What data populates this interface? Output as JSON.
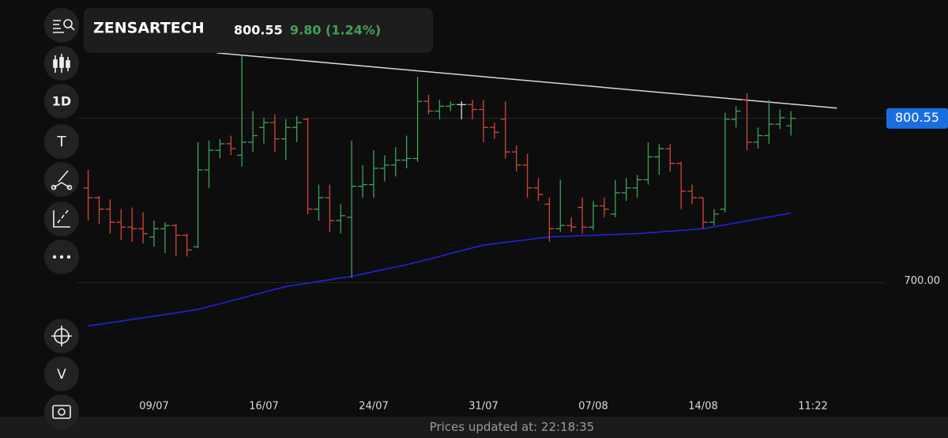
{
  "header": {
    "symbol": "ZENSARTECH",
    "change": "9.80 (1.24%)"
  },
  "toolbar": {
    "interval": "1D",
    "text_tool": "T",
    "volume": "V"
  },
  "footer": {
    "label": "Prices updated at:",
    "time": "22:18:35"
  },
  "chart_data": {
    "type": "ohlc",
    "last_price": 800.55,
    "categories": [
      null,
      null,
      null,
      null,
      null,
      null,
      "09/07",
      null,
      null,
      null,
      null,
      null,
      null,
      null,
      null,
      null,
      "16/07",
      null,
      null,
      null,
      null,
      null,
      null,
      null,
      null,
      null,
      "24/07",
      null,
      null,
      null,
      null,
      null,
      null,
      null,
      null,
      null,
      "31/07",
      null,
      null,
      null,
      null,
      null,
      null,
      null,
      null,
      null,
      "07/08",
      null,
      null,
      null,
      null,
      null,
      null,
      null,
      null,
      null,
      "14/08",
      null,
      null,
      null,
      null,
      null,
      null,
      null,
      null,
      null,
      "11:22"
    ],
    "open": [
      758,
      752,
      745,
      737,
      734,
      733,
      728,
      733,
      735,
      729,
      722,
      769,
      781,
      785,
      778,
      786,
      795,
      798,
      788,
      795,
      800,
      745,
      752,
      738,
      740,
      759,
      760,
      770,
      772,
      775,
      776,
      811,
      805,
      808,
      809,
      809,
      806,
      795,
      800,
      780,
      772,
      758,
      748,
      733,
      735,
      746,
      734,
      747,
      742,
      755,
      758,
      763,
      777,
      782,
      773,
      756,
      752,
      737,
      745,
      800,
      812,
      786,
      790,
      797,
      796,
      null,
      null
    ],
    "high": [
      769,
      753,
      751,
      745,
      746,
      743,
      738,
      737,
      736,
      730,
      786,
      787,
      788,
      790,
      839,
      805,
      801,
      803,
      800,
      802,
      801,
      760,
      760,
      748,
      787,
      772,
      781,
      778,
      783,
      790,
      826,
      815,
      812,
      811,
      811,
      812,
      812,
      798,
      811,
      784,
      779,
      764,
      752,
      763,
      740,
      752,
      750,
      752,
      763,
      764,
      766,
      786,
      785,
      785,
      774,
      760,
      752,
      745,
      804,
      808,
      816,
      795,
      812,
      806,
      805,
      null,
      null
    ],
    "low": [
      738,
      736,
      730,
      726,
      725,
      724,
      722,
      718,
      716,
      716,
      721,
      758,
      776,
      778,
      771,
      780,
      785,
      780,
      775,
      786,
      742,
      738,
      731,
      730,
      703,
      752,
      752,
      762,
      765,
      770,
      774,
      803,
      800,
      805,
      800,
      800,
      786,
      788,
      776,
      768,
      752,
      750,
      725,
      731,
      731,
      730,
      732,
      740,
      740,
      750,
      752,
      760,
      766,
      768,
      745,
      748,
      733,
      735,
      743,
      795,
      781,
      782,
      785,
      794,
      790,
      null,
      null
    ],
    "close": [
      752,
      745,
      737,
      734,
      733,
      730,
      733,
      735,
      729,
      720,
      769,
      781,
      785,
      782,
      786,
      790,
      798,
      788,
      795,
      798,
      745,
      752,
      738,
      741,
      759,
      760,
      770,
      772,
      775,
      776,
      811,
      805,
      808,
      809,
      809,
      806,
      795,
      792,
      780,
      772,
      758,
      754,
      733,
      735,
      734,
      734,
      747,
      745,
      755,
      758,
      763,
      777,
      782,
      773,
      756,
      752,
      737,
      742,
      800,
      805,
      786,
      790,
      797,
      801,
      800.55,
      null,
      null
    ],
    "ma": [
      673.5,
      674.5,
      675.5,
      676.5,
      677.5,
      678.5,
      679.5,
      680.5,
      681.5,
      682.6,
      683.6,
      685.4,
      687.1,
      688.9,
      690.6,
      692.4,
      694.1,
      695.9,
      697.6,
      698.7,
      699.7,
      700.8,
      701.8,
      702.9,
      703.9,
      705.3,
      706.8,
      708.2,
      709.6,
      711,
      712.7,
      714.4,
      716.1,
      717.9,
      719.6,
      721.3,
      723,
      723.8,
      724.7,
      725.5,
      726.3,
      727.2,
      728,
      728.3,
      728.5,
      728.8,
      729,
      729.3,
      729.5,
      729.8,
      730,
      730.5,
      731,
      731.5,
      732,
      732.5,
      733,
      734.2,
      735.4,
      736.6,
      737.8,
      739,
      740.2,
      741.4,
      742.6,
      null,
      null
    ],
    "ma_color": "#2424e8",
    "up_color": "#3fa25a",
    "down_color": "#d2473c",
    "flat_color": "#dddddd",
    "trendline": {
      "x": [
        11.75,
        68.2
      ],
      "values": [
        840.6,
        806.8
      ],
      "color": "#d8d8d8"
    },
    "ylim": [
      618,
      873
    ],
    "yticks": [
      {
        "value": 700,
        "label": "700.00"
      }
    ],
    "grid": true
  }
}
